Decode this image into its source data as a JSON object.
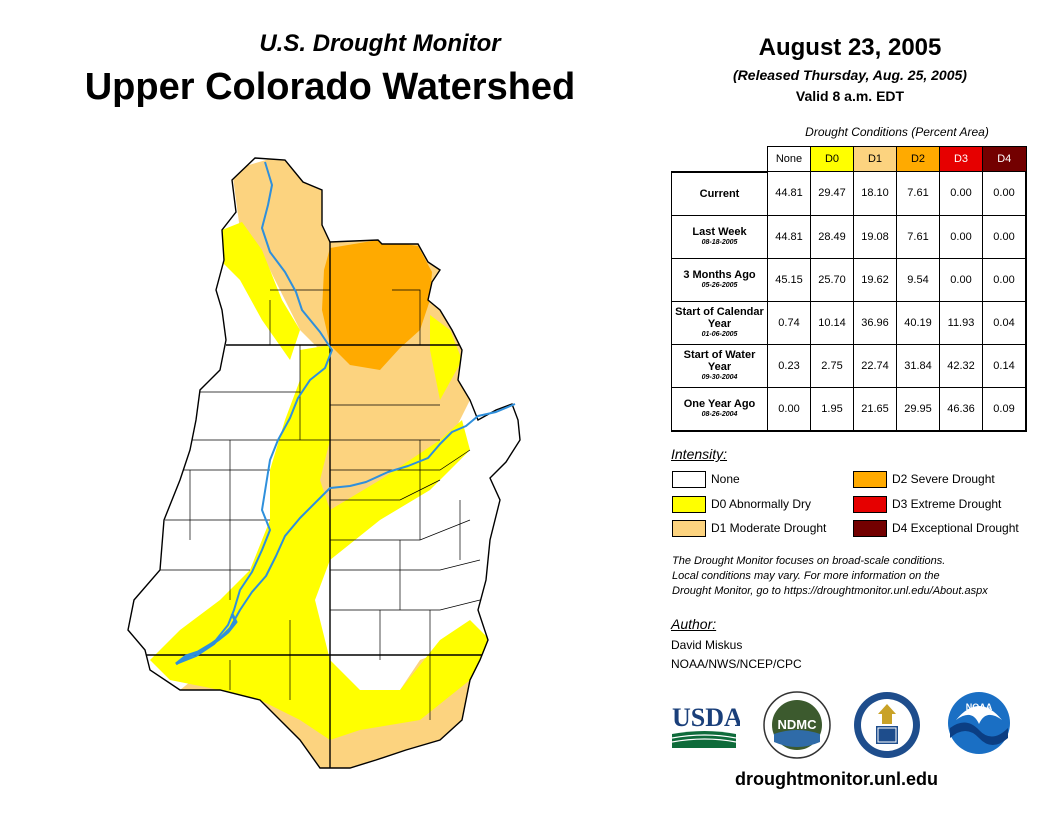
{
  "title": {
    "subtitle": "U.S. Drought Monitor",
    "main": "Upper Colorado Watershed"
  },
  "date": {
    "main": "August 23, 2005",
    "released": "(Released Thursday, Aug. 25, 2005)",
    "valid": "Valid 8 a.m. EDT"
  },
  "table": {
    "title": "Drought Conditions (Percent Area)",
    "columns": [
      "None",
      "D0",
      "D1",
      "D2",
      "D3",
      "D4"
    ],
    "column_colors": [
      "#ffffff",
      "#ffff00",
      "#fcd37f",
      "#ffaa00",
      "#e60000",
      "#730000"
    ],
    "rows": [
      {
        "label": "Current",
        "date": "",
        "values": [
          "44.81",
          "29.47",
          "18.10",
          "7.61",
          "0.00",
          "0.00"
        ]
      },
      {
        "label": "Last Week",
        "date": "08-18-2005",
        "values": [
          "44.81",
          "28.49",
          "19.08",
          "7.61",
          "0.00",
          "0.00"
        ]
      },
      {
        "label": "3 Months Ago",
        "date": "05-26-2005",
        "values": [
          "45.15",
          "25.70",
          "19.62",
          "9.54",
          "0.00",
          "0.00"
        ]
      },
      {
        "label": "Start of Calendar Year",
        "date": "01-06-2005",
        "values": [
          "0.74",
          "10.14",
          "36.96",
          "40.19",
          "11.93",
          "0.04"
        ]
      },
      {
        "label": "Start of Water Year",
        "date": "09-30-2004",
        "values": [
          "0.23",
          "2.75",
          "22.74",
          "31.84",
          "42.32",
          "0.14"
        ]
      },
      {
        "label": "One Year Ago",
        "date": "08-26-2004",
        "values": [
          "0.00",
          "1.95",
          "21.65",
          "29.95",
          "46.36",
          "0.09"
        ]
      }
    ]
  },
  "legend": {
    "title": "Intensity:",
    "items": [
      {
        "label": "None",
        "color": "#ffffff"
      },
      {
        "label": "D0 Abnormally Dry",
        "color": "#ffff00"
      },
      {
        "label": "D1 Moderate Drought",
        "color": "#fcd37f"
      },
      {
        "label": "D2 Severe Drought",
        "color": "#ffaa00"
      },
      {
        "label": "D3 Extreme Drought",
        "color": "#e60000"
      },
      {
        "label": "D4 Exceptional Drought",
        "color": "#730000"
      }
    ]
  },
  "note": {
    "line1": "The Drought Monitor focuses on broad-scale conditions.",
    "line2": "Local conditions may vary. For more information on the",
    "line3": "Drought Monitor, go to https://droughtmonitor.unl.edu/About.aspx"
  },
  "author": {
    "title": "Author:",
    "name": "David Miskus",
    "org": "NOAA/NWS/NCEP/CPC"
  },
  "logos": {
    "usda": "USDA",
    "ndmc": "NDMC",
    "noaa": "NOAA"
  },
  "website": "droughtmonitor.unl.edu",
  "colors": {
    "river": "#2e8fdc",
    "d0": "#ffff00",
    "d1": "#fcd37f",
    "d2": "#ffaa00"
  }
}
